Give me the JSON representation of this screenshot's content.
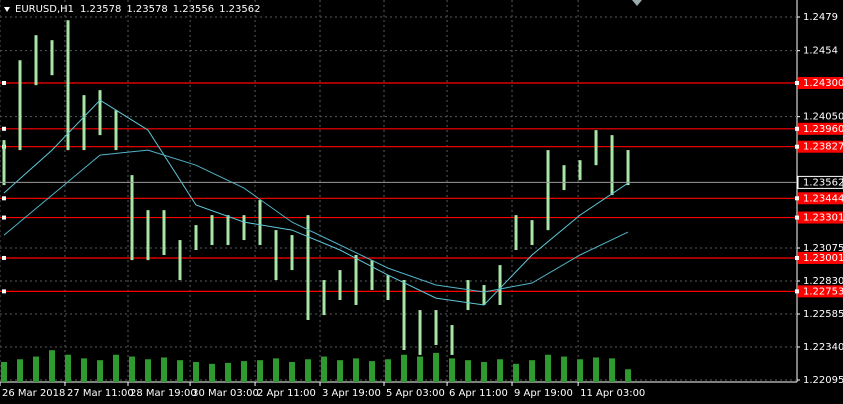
{
  "chart_data": {
    "type": "range-bar",
    "symbol": "EURUSD,H1",
    "quote": [
      1.23578,
      1.23578,
      1.23556,
      1.23562
    ],
    "high": [
      1.23876,
      1.24469,
      1.24655,
      1.24618,
      1.24766,
      1.2421,
      1.24247,
      1.24098,
      1.23616,
      1.23356,
      1.23356,
      1.23134,
      1.23245,
      1.23319,
      1.23319,
      1.23319,
      1.23431,
      1.23208,
      1.23171,
      1.23319,
      1.22837,
      1.22911,
      1.23023,
      1.22985,
      1.22874,
      1.22837,
      1.22614,
      1.22614,
      1.22503,
      1.22837,
      1.228,
      1.22948,
      1.23319,
      1.23282,
      1.23802,
      1.2369,
      1.23727,
      1.2395,
      1.23913,
      1.23802
    ],
    "low": [
      1.23542,
      1.23802,
      1.24284,
      1.24358,
      1.23802,
      1.23802,
      1.23913,
      1.23802,
      1.22985,
      1.22985,
      1.23023,
      1.22837,
      1.2306,
      1.23097,
      1.23097,
      1.23134,
      1.23097,
      1.22837,
      1.22911,
      1.2254,
      1.22577,
      1.22689,
      1.22652,
      1.22763,
      1.22689,
      1.22318,
      1.22281,
      1.22355,
      1.22281,
      1.22614,
      1.22652,
      1.22652,
      1.2306,
      1.23097,
      1.23208,
      1.23505,
      1.23579,
      1.2369,
      1.23468,
      1.23542
    ],
    "bar_color": "#a8e6a8",
    "volume": [
      22,
      25,
      28,
      35,
      30,
      26,
      24,
      30,
      28,
      25,
      27,
      24,
      22,
      20,
      21,
      23,
      24,
      26,
      22,
      25,
      28,
      24,
      26,
      23,
      25,
      30,
      28,
      32,
      26,
      24,
      22,
      25,
      20,
      24,
      30,
      28,
      25,
      27,
      26,
      14
    ],
    "volume_color": "#2f9a2f",
    "vlim": [
      0,
      110
    ],
    "series": [
      {
        "x": [
          0,
          3,
          6,
          9,
          12,
          15,
          18,
          21,
          24,
          27,
          30,
          33,
          36,
          39
        ],
        "values": [
          1.23483,
          1.23802,
          1.24173,
          1.2395,
          1.23394,
          1.23267,
          1.23208,
          1.2306,
          1.22874,
          1.22703,
          1.22652,
          1.23023,
          1.23319,
          1.23557
        ],
        "color": "#5fc8d8"
      },
      {
        "x": [
          0,
          3,
          6,
          9,
          12,
          15,
          18,
          21,
          24,
          27,
          30,
          33,
          36,
          39
        ],
        "values": [
          1.23171,
          1.23468,
          1.23765,
          1.23802,
          1.2369,
          1.2352,
          1.23267,
          1.23097,
          1.22926,
          1.228,
          1.22748,
          1.22815,
          1.23023,
          1.23193
        ],
        "color": "#4fb4c8"
      }
    ],
    "levels": [
      {
        "value": 1.243,
        "label": "1.24300"
      },
      {
        "value": 1.2396,
        "label": "1.23960"
      },
      {
        "value": 1.23827,
        "label": "1.23827"
      },
      {
        "value": 1.23444,
        "label": "1.23444"
      },
      {
        "value": 1.23301,
        "label": "1.23301"
      },
      {
        "value": 1.23001,
        "label": "1.23001"
      },
      {
        "value": 1.22753,
        "label": "1.22753"
      }
    ],
    "level_color": "#ff0000",
    "current": 1.23562,
    "ylim": [
      1.22095,
      1.2479
    ],
    "yticks": [
      1.2479,
      1.2454,
      {
        "value": 1.2405,
        "label": "1.24050"
      },
      {
        "value": 1.23075,
        "label": "1.23075"
      },
      {
        "value": 1.2283,
        "label": "1.22830"
      },
      {
        "value": 1.22585,
        "label": "1.22585"
      },
      {
        "value": 1.2234,
        "label": "1.22340"
      },
      {
        "value": 1.22095,
        "label": "1.22095"
      }
    ],
    "xlim": [
      -0.25,
      49.56
    ],
    "xticks": [
      {
        "value": -0.25,
        "label": "26 Mar 2018"
      },
      {
        "value": 3.81,
        "label": "27 Mar 11:00"
      },
      {
        "value": 7.75,
        "label": "28 Mar 19:00"
      },
      {
        "value": 11.63,
        "label": "30 Mar 03:00"
      },
      {
        "value": 15.69,
        "label": "2 Apr 11:00"
      },
      {
        "value": 19.75,
        "label": "3 Apr 19:00"
      },
      {
        "value": 23.75,
        "label": "5 Apr 03:00"
      },
      {
        "value": 27.69,
        "label": "6 Apr 11:00"
      },
      {
        "value": 31.75,
        "label": "9 Apr 19:00"
      },
      {
        "value": 35.88,
        "label": "11 Apr 03:00"
      }
    ],
    "grid": true
  }
}
